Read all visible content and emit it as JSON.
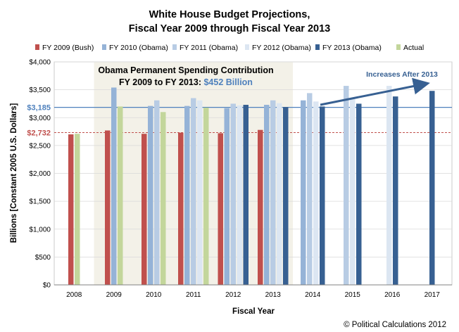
{
  "chart_data": {
    "type": "bar",
    "title": "White House Budget Projections,",
    "subtitle": "Fiscal Year 2009 through Fiscal Year 2013",
    "xlabel": "Fiscal Year",
    "ylabel": "Billions [Constant 2005 U.S. Dollars]",
    "ylim": [
      0,
      4000
    ],
    "yticks": [
      "$0",
      "$500",
      "$1,000",
      "$1,500",
      "$2,000",
      "$2,500",
      "$3,000",
      "$3,500",
      "$4,000"
    ],
    "categories": [
      "2008",
      "2009",
      "2010",
      "2011",
      "2012",
      "2013",
      "2014",
      "2015",
      "2016",
      "2017"
    ],
    "grid": "horizontal",
    "legend_position": "top",
    "series": [
      {
        "name": "FY 2009 (Bush)",
        "color": "#c0504d",
        "values": [
          2700,
          2770,
          2710,
          2730,
          2720,
          2780,
          null,
          null,
          null,
          null
        ]
      },
      {
        "name": "FY 2010 (Obama)",
        "color": "#95b3d7",
        "values": [
          null,
          3540,
          3210,
          3210,
          3170,
          3230,
          3310,
          null,
          null,
          null
        ]
      },
      {
        "name": "FY 2011 (Obama)",
        "color": "#b8cce4",
        "values": [
          null,
          null,
          3310,
          3350,
          3250,
          3310,
          3440,
          3570,
          null,
          null
        ]
      },
      {
        "name": "FY 2012 (Obama)",
        "color": "#dce6f2",
        "values": [
          null,
          null,
          null,
          3310,
          3220,
          3260,
          3290,
          3350,
          3570,
          null
        ]
      },
      {
        "name": "FY 2013 (Obama)",
        "color": "#376092",
        "values": [
          null,
          null,
          null,
          null,
          3230,
          3190,
          3200,
          3250,
          3380,
          3480
        ]
      },
      {
        "name": "Actual",
        "color": "#c3d69b",
        "values": [
          2710,
          3200,
          3100,
          3180,
          null,
          null,
          null,
          null,
          null,
          null
        ]
      }
    ],
    "reference_lines": [
      {
        "label": "$3,185",
        "value": 3185,
        "color": "#4f81bd",
        "style": "solid"
      },
      {
        "label": "$2,732",
        "value": 2732,
        "color": "#c0504d",
        "style": "dashed"
      }
    ],
    "annotations": {
      "box_line1": "Obama Permanent Spending Contribution",
      "box_line2_prefix": "FY 2009 to FY 2013: ",
      "box_line2_value": "$452 Billion",
      "arrow_label": "Increases After 2013"
    },
    "credit": "© Political Calculations 2012"
  }
}
